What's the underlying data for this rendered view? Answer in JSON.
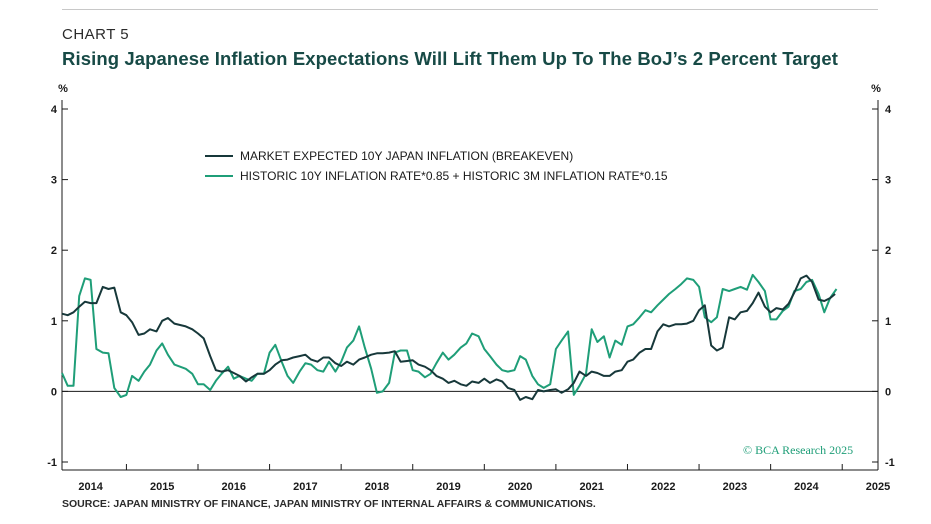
{
  "header": {
    "chart_number": "CHART 5",
    "title": "Rising Japanese Inflation Expectations Will Lift Them Up To The BoJ’s 2 Percent Target"
  },
  "footer": {
    "source": "SOURCE: JAPAN MINISTRY OF FINANCE, JAPAN MINISTRY OF INTERNAL AFFAIRS & COMMUNICATIONS.",
    "watermark": "© BCA Research 2025"
  },
  "colors": {
    "breakeven": "#17383a",
    "historic": "#1f9e78",
    "title": "#174a46"
  },
  "chart_data": {
    "type": "line",
    "ylabel_left": "%",
    "ylabel_right": "%",
    "ylim": [
      -1.1,
      4.1
    ],
    "xlim": [
      2013.6,
      2025.0
    ],
    "yticks": [
      -1,
      0,
      1,
      2,
      3,
      4
    ],
    "xticks": [
      2014,
      2015,
      2016,
      2017,
      2018,
      2019,
      2020,
      2021,
      2022,
      2023,
      2024,
      2025
    ],
    "legend_position": "top-center",
    "series": [
      {
        "name": "MARKET EXPECTED 10Y JAPAN INFLATION (BREAKEVEN)",
        "color": "#17383a",
        "points": [
          [
            2013.6,
            1.1
          ],
          [
            2013.68,
            1.08
          ],
          [
            2013.76,
            1.12
          ],
          [
            2013.84,
            1.2
          ],
          [
            2013.92,
            1.27
          ],
          [
            2014.0,
            1.25
          ],
          [
            2014.08,
            1.25
          ],
          [
            2014.17,
            1.48
          ],
          [
            2014.25,
            1.45
          ],
          [
            2014.33,
            1.47
          ],
          [
            2014.42,
            1.12
          ],
          [
            2014.5,
            1.08
          ],
          [
            2014.58,
            0.98
          ],
          [
            2014.67,
            0.8
          ],
          [
            2014.75,
            0.82
          ],
          [
            2014.83,
            0.88
          ],
          [
            2014.92,
            0.85
          ],
          [
            2015.0,
            1.0
          ],
          [
            2015.08,
            1.04
          ],
          [
            2015.17,
            0.96
          ],
          [
            2015.25,
            0.94
          ],
          [
            2015.33,
            0.92
          ],
          [
            2015.42,
            0.88
          ],
          [
            2015.5,
            0.82
          ],
          [
            2015.58,
            0.75
          ],
          [
            2015.67,
            0.5
          ],
          [
            2015.75,
            0.3
          ],
          [
            2015.83,
            0.28
          ],
          [
            2015.92,
            0.3
          ],
          [
            2016.0,
            0.26
          ],
          [
            2016.08,
            0.22
          ],
          [
            2016.17,
            0.14
          ],
          [
            2016.25,
            0.2
          ],
          [
            2016.33,
            0.25
          ],
          [
            2016.42,
            0.25
          ],
          [
            2016.5,
            0.3
          ],
          [
            2016.58,
            0.38
          ],
          [
            2016.67,
            0.44
          ],
          [
            2016.75,
            0.45
          ],
          [
            2016.83,
            0.48
          ],
          [
            2016.92,
            0.5
          ],
          [
            2017.0,
            0.52
          ],
          [
            2017.08,
            0.45
          ],
          [
            2017.17,
            0.42
          ],
          [
            2017.25,
            0.48
          ],
          [
            2017.33,
            0.48
          ],
          [
            2017.42,
            0.4
          ],
          [
            2017.5,
            0.36
          ],
          [
            2017.58,
            0.42
          ],
          [
            2017.67,
            0.38
          ],
          [
            2017.75,
            0.45
          ],
          [
            2017.83,
            0.48
          ],
          [
            2017.92,
            0.52
          ],
          [
            2018.0,
            0.54
          ],
          [
            2018.08,
            0.54
          ],
          [
            2018.17,
            0.55
          ],
          [
            2018.25,
            0.57
          ],
          [
            2018.33,
            0.42
          ],
          [
            2018.42,
            0.43
          ],
          [
            2018.5,
            0.44
          ],
          [
            2018.58,
            0.38
          ],
          [
            2018.67,
            0.35
          ],
          [
            2018.75,
            0.3
          ],
          [
            2018.83,
            0.22
          ],
          [
            2018.92,
            0.18
          ],
          [
            2019.0,
            0.12
          ],
          [
            2019.08,
            0.15
          ],
          [
            2019.17,
            0.1
          ],
          [
            2019.25,
            0.08
          ],
          [
            2019.33,
            0.14
          ],
          [
            2019.42,
            0.12
          ],
          [
            2019.5,
            0.18
          ],
          [
            2019.58,
            0.12
          ],
          [
            2019.67,
            0.17
          ],
          [
            2019.75,
            0.14
          ],
          [
            2019.83,
            0.05
          ],
          [
            2019.92,
            0.02
          ],
          [
            2020.0,
            -0.12
          ],
          [
            2020.08,
            -0.08
          ],
          [
            2020.17,
            -0.11
          ],
          [
            2020.25,
            0.02
          ],
          [
            2020.33,
            0.0
          ],
          [
            2020.42,
            0.02
          ],
          [
            2020.5,
            0.03
          ],
          [
            2020.58,
            -0.02
          ],
          [
            2020.67,
            0.03
          ],
          [
            2020.75,
            0.12
          ],
          [
            2020.83,
            0.28
          ],
          [
            2020.92,
            0.22
          ],
          [
            2021.0,
            0.28
          ],
          [
            2021.08,
            0.26
          ],
          [
            2021.17,
            0.22
          ],
          [
            2021.25,
            0.22
          ],
          [
            2021.33,
            0.28
          ],
          [
            2021.42,
            0.3
          ],
          [
            2021.5,
            0.42
          ],
          [
            2021.58,
            0.45
          ],
          [
            2021.67,
            0.55
          ],
          [
            2021.75,
            0.6
          ],
          [
            2021.83,
            0.6
          ],
          [
            2021.92,
            0.85
          ],
          [
            2022.0,
            0.95
          ],
          [
            2022.08,
            0.92
          ],
          [
            2022.17,
            0.95
          ],
          [
            2022.25,
            0.95
          ],
          [
            2022.33,
            0.96
          ],
          [
            2022.42,
            1.0
          ],
          [
            2022.5,
            1.15
          ],
          [
            2022.58,
            1.22
          ],
          [
            2022.67,
            0.65
          ],
          [
            2022.75,
            0.58
          ],
          [
            2022.83,
            0.62
          ],
          [
            2022.92,
            1.05
          ],
          [
            2023.0,
            1.02
          ],
          [
            2023.08,
            1.12
          ],
          [
            2023.17,
            1.14
          ],
          [
            2023.25,
            1.25
          ],
          [
            2023.33,
            1.4
          ],
          [
            2023.42,
            1.2
          ],
          [
            2023.5,
            1.12
          ],
          [
            2023.58,
            1.18
          ],
          [
            2023.67,
            1.16
          ],
          [
            2023.75,
            1.24
          ],
          [
            2023.83,
            1.4
          ],
          [
            2023.92,
            1.6
          ],
          [
            2024.0,
            1.64
          ],
          [
            2024.08,
            1.55
          ],
          [
            2024.17,
            1.3
          ],
          [
            2024.25,
            1.28
          ],
          [
            2024.33,
            1.32
          ],
          [
            2024.4,
            1.38
          ]
        ]
      },
      {
        "name": "HISTORIC 10Y INFLATION RATE*0.85 + HISTORIC 3M INFLATION RATE*0.15",
        "color": "#1f9e78",
        "points": [
          [
            2013.6,
            0.26
          ],
          [
            2013.68,
            0.08
          ],
          [
            2013.76,
            0.08
          ],
          [
            2013.84,
            1.35
          ],
          [
            2013.92,
            1.6
          ],
          [
            2014.0,
            1.58
          ],
          [
            2014.08,
            0.6
          ],
          [
            2014.17,
            0.55
          ],
          [
            2014.25,
            0.54
          ],
          [
            2014.33,
            0.05
          ],
          [
            2014.42,
            -0.08
          ],
          [
            2014.5,
            -0.05
          ],
          [
            2014.58,
            0.22
          ],
          [
            2014.67,
            0.15
          ],
          [
            2014.75,
            0.28
          ],
          [
            2014.83,
            0.38
          ],
          [
            2014.92,
            0.58
          ],
          [
            2015.0,
            0.68
          ],
          [
            2015.08,
            0.52
          ],
          [
            2015.17,
            0.38
          ],
          [
            2015.25,
            0.35
          ],
          [
            2015.33,
            0.32
          ],
          [
            2015.42,
            0.25
          ],
          [
            2015.5,
            0.1
          ],
          [
            2015.58,
            0.1
          ],
          [
            2015.67,
            0.02
          ],
          [
            2015.75,
            0.15
          ],
          [
            2015.83,
            0.25
          ],
          [
            2015.92,
            0.35
          ],
          [
            2016.0,
            0.18
          ],
          [
            2016.08,
            0.22
          ],
          [
            2016.17,
            0.18
          ],
          [
            2016.25,
            0.15
          ],
          [
            2016.33,
            0.25
          ],
          [
            2016.42,
            0.25
          ],
          [
            2016.5,
            0.55
          ],
          [
            2016.58,
            0.66
          ],
          [
            2016.67,
            0.42
          ],
          [
            2016.75,
            0.22
          ],
          [
            2016.83,
            0.12
          ],
          [
            2016.92,
            0.28
          ],
          [
            2017.0,
            0.4
          ],
          [
            2017.08,
            0.38
          ],
          [
            2017.17,
            0.3
          ],
          [
            2017.25,
            0.28
          ],
          [
            2017.33,
            0.42
          ],
          [
            2017.42,
            0.28
          ],
          [
            2017.5,
            0.42
          ],
          [
            2017.58,
            0.62
          ],
          [
            2017.67,
            0.72
          ],
          [
            2017.75,
            0.92
          ],
          [
            2017.83,
            0.62
          ],
          [
            2017.92,
            0.32
          ],
          [
            2018.0,
            -0.02
          ],
          [
            2018.08,
            0.0
          ],
          [
            2018.17,
            0.12
          ],
          [
            2018.25,
            0.55
          ],
          [
            2018.33,
            0.58
          ],
          [
            2018.42,
            0.58
          ],
          [
            2018.5,
            0.3
          ],
          [
            2018.58,
            0.28
          ],
          [
            2018.67,
            0.2
          ],
          [
            2018.75,
            0.25
          ],
          [
            2018.83,
            0.4
          ],
          [
            2018.92,
            0.55
          ],
          [
            2019.0,
            0.45
          ],
          [
            2019.08,
            0.52
          ],
          [
            2019.17,
            0.62
          ],
          [
            2019.25,
            0.68
          ],
          [
            2019.33,
            0.82
          ],
          [
            2019.42,
            0.78
          ],
          [
            2019.5,
            0.6
          ],
          [
            2019.58,
            0.5
          ],
          [
            2019.67,
            0.38
          ],
          [
            2019.75,
            0.3
          ],
          [
            2019.83,
            0.28
          ],
          [
            2019.92,
            0.3
          ],
          [
            2020.0,
            0.5
          ],
          [
            2020.08,
            0.45
          ],
          [
            2020.17,
            0.22
          ],
          [
            2020.25,
            0.1
          ],
          [
            2020.33,
            0.05
          ],
          [
            2020.42,
            0.1
          ],
          [
            2020.5,
            0.6
          ],
          [
            2020.58,
            0.72
          ],
          [
            2020.67,
            0.85
          ],
          [
            2020.75,
            -0.05
          ],
          [
            2020.83,
            0.08
          ],
          [
            2020.92,
            0.25
          ],
          [
            2021.0,
            0.88
          ],
          [
            2021.08,
            0.7
          ],
          [
            2021.17,
            0.78
          ],
          [
            2021.25,
            0.48
          ],
          [
            2021.33,
            0.72
          ],
          [
            2021.42,
            0.66
          ],
          [
            2021.5,
            0.92
          ],
          [
            2021.58,
            0.95
          ],
          [
            2021.67,
            1.05
          ],
          [
            2021.75,
            1.15
          ],
          [
            2021.83,
            1.12
          ],
          [
            2021.92,
            1.22
          ],
          [
            2022.0,
            1.3
          ],
          [
            2022.08,
            1.38
          ],
          [
            2022.17,
            1.45
          ],
          [
            2022.25,
            1.52
          ],
          [
            2022.33,
            1.6
          ],
          [
            2022.42,
            1.58
          ],
          [
            2022.5,
            1.48
          ],
          [
            2022.58,
            1.05
          ],
          [
            2022.67,
            0.98
          ],
          [
            2022.75,
            1.05
          ],
          [
            2022.83,
            1.45
          ],
          [
            2022.92,
            1.42
          ],
          [
            2023.0,
            1.45
          ],
          [
            2023.08,
            1.48
          ],
          [
            2023.17,
            1.44
          ],
          [
            2023.25,
            1.65
          ],
          [
            2023.33,
            1.55
          ],
          [
            2023.42,
            1.42
          ],
          [
            2023.5,
            1.02
          ],
          [
            2023.58,
            1.02
          ],
          [
            2023.67,
            1.14
          ],
          [
            2023.75,
            1.2
          ],
          [
            2023.83,
            1.42
          ],
          [
            2023.92,
            1.45
          ],
          [
            2024.0,
            1.55
          ],
          [
            2024.08,
            1.58
          ],
          [
            2024.17,
            1.38
          ],
          [
            2024.25,
            1.12
          ],
          [
            2024.33,
            1.32
          ],
          [
            2024.42,
            1.45
          ]
        ]
      }
    ]
  }
}
